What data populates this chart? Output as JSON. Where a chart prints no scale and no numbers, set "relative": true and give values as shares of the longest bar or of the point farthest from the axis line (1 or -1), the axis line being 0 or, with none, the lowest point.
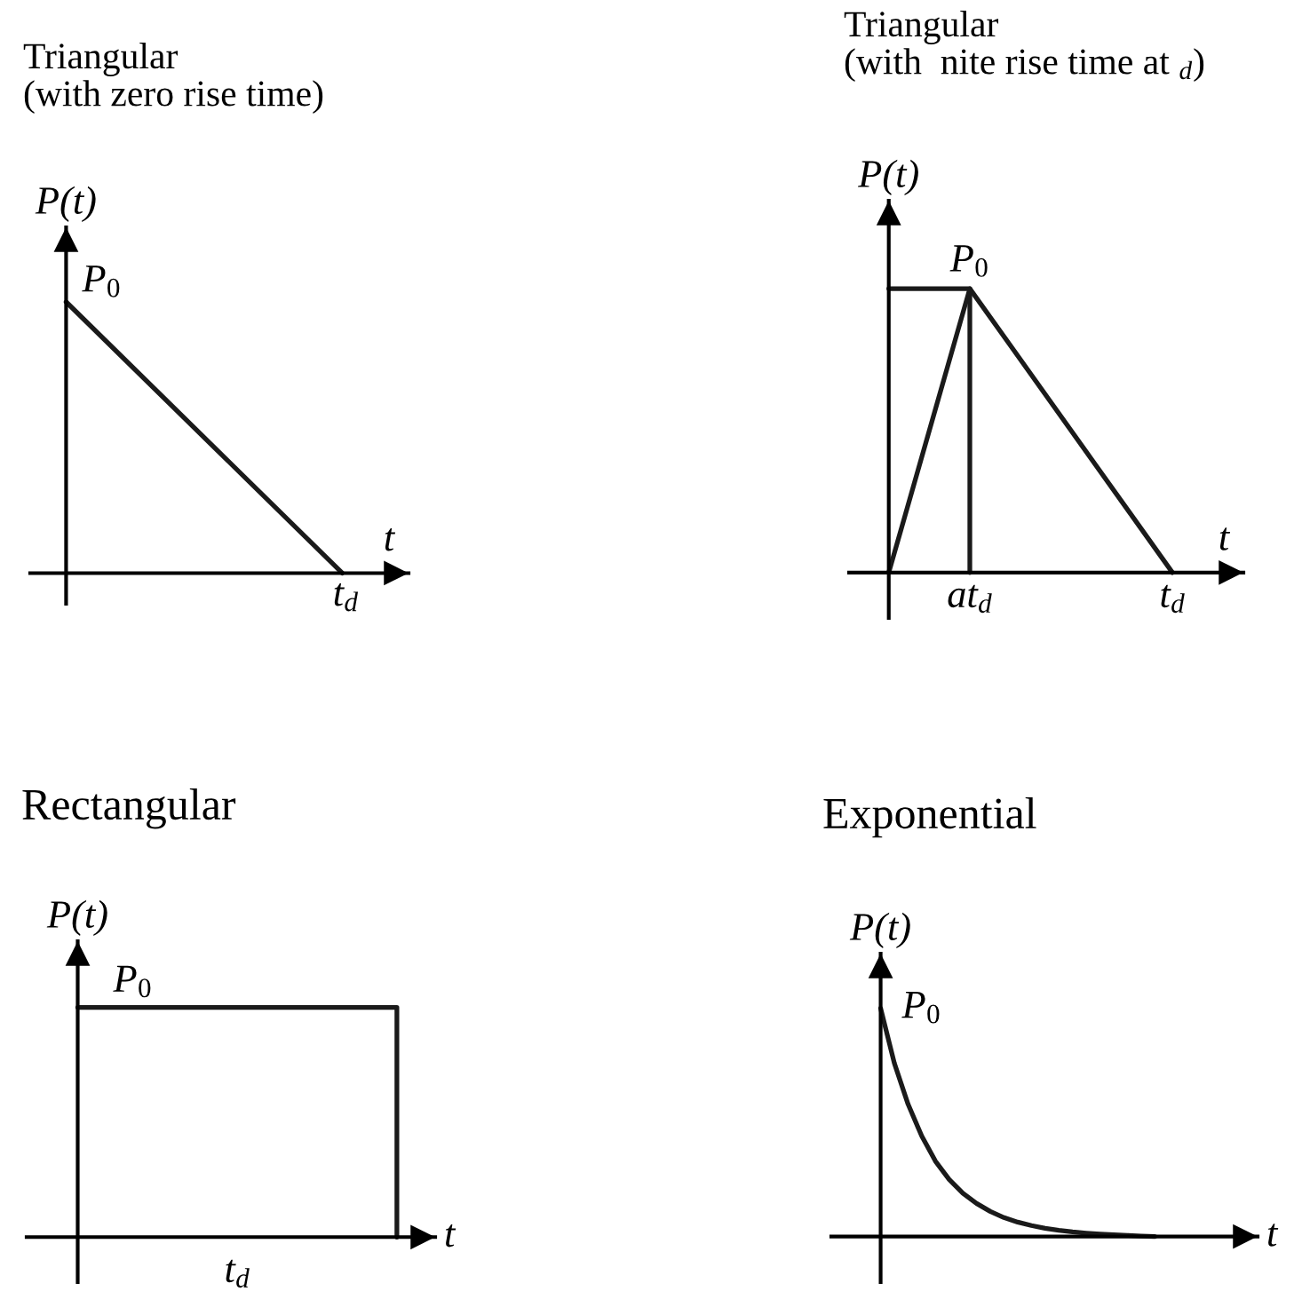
{
  "chart_data": [
    {
      "type": "line",
      "title": "Triangular\n(with zero rise time)",
      "xlabel": "t",
      "ylabel": "P(t)",
      "relative": true,
      "categories": [
        null,
        null
      ],
      "values": [
        1,
        0
      ],
      "color": "#1a1a1a",
      "tick_labels": false,
      "annotations": [
        "P$_{0}$",
        "t$_{d}$"
      ]
    },
    {
      "type": "line",
      "title": "Triangular\n(with  nite rise time at $_{d}$)",
      "xlabel": "t",
      "ylabel": "P(t)",
      "relative": true,
      "categories": [
        null,
        null,
        "at$_{d}$",
        null,
        null,
        null,
        null,
        "t$_{d}$"
      ],
      "series": [
        {
          "values": [
            0,
            0.5,
            1,
            0.8,
            0.6,
            0.4,
            0.2,
            0
          ],
          "color": "#1a1a1a"
        },
        {
          "type": "step",
          "values": [
            1,
            1,
            0,
            null,
            null,
            null,
            null,
            null
          ],
          "color": "#1a1a1a"
        }
      ],
      "tick_labels": "x",
      "annotations": [
        {
          "text": "P$_{0}$",
          "x": "at$_{d}$",
          "y": 1
        }
      ]
    },
    {
      "type": "step",
      "title": "Rectangular",
      "xlabel": "t",
      "ylabel": "P(t)",
      "relative": true,
      "categories": [
        null,
        null,
        null,
        null,
        null
      ],
      "values": [
        1,
        1,
        1,
        1,
        0
      ],
      "color": "#1a1a1a",
      "tick_labels": false,
      "annotations": [
        "P$_{0}$",
        "t$_{d}$"
      ]
    },
    {
      "type": "line",
      "title": "Exponential",
      "xlabel": "t",
      "ylabel": "P(t)",
      "relative": true,
      "categories": [
        null,
        null,
        null,
        null,
        null,
        null,
        null,
        null,
        null,
        null,
        null,
        null,
        null,
        null,
        null,
        null,
        null,
        null,
        null,
        null,
        null
      ],
      "values": [
        1,
        0.76,
        0.58,
        0.44,
        0.33,
        0.25,
        0.19,
        0.145,
        0.11,
        0.083,
        0.063,
        0.048,
        0.036,
        0.027,
        0.02,
        0.015,
        0.011,
        0.008,
        0.005,
        0.002,
        0
      ],
      "color": "#1a1a1a",
      "tick_labels": false,
      "annotations": [
        "P$_{0}$"
      ]
    }
  ]
}
